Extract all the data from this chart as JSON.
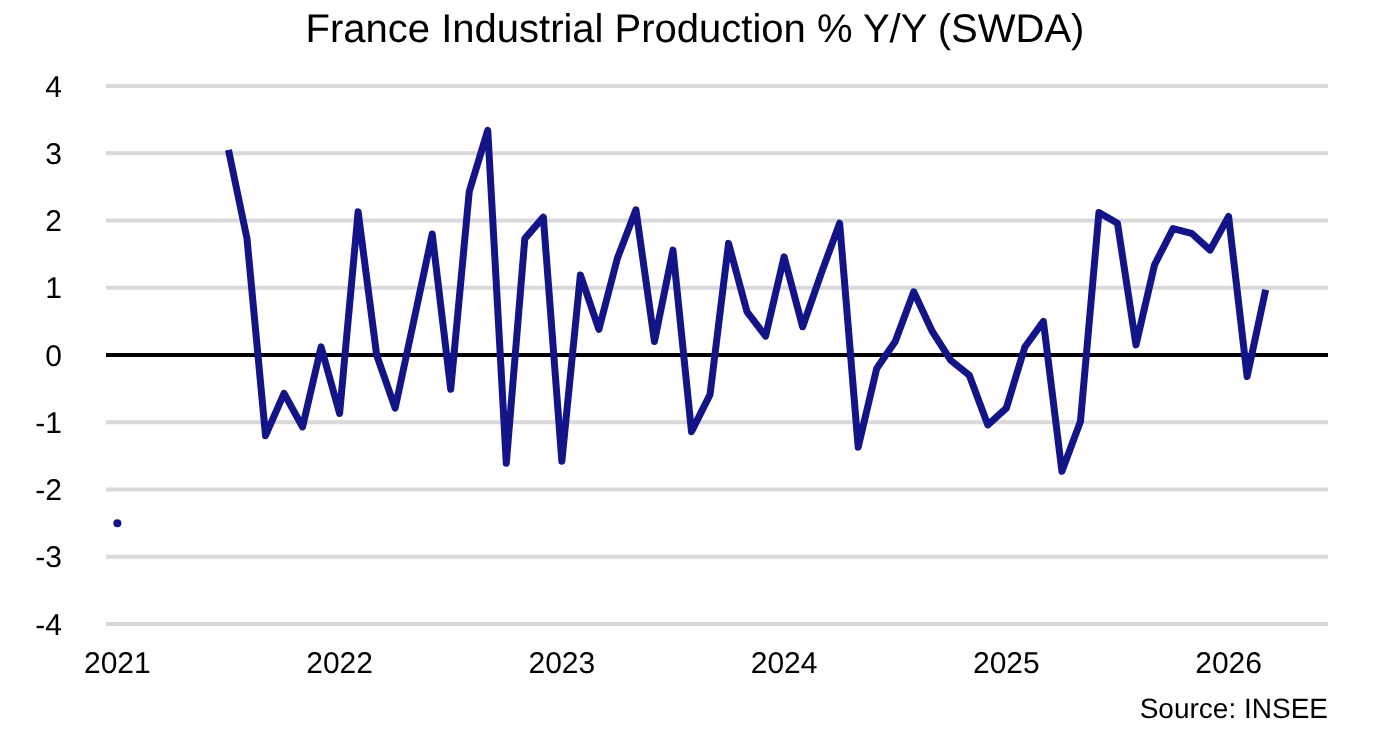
{
  "chart_data": {
    "type": "line",
    "title": "France Industrial Production % Y/Y (SWDA)",
    "x": [
      "2021-01",
      "2021-02",
      "2021-03",
      "2021-04",
      "2021-05",
      "2021-06",
      "2021-07",
      "2021-08",
      "2021-09",
      "2021-10",
      "2021-11",
      "2021-12",
      "2022-01",
      "2022-02",
      "2022-03",
      "2022-04",
      "2022-05",
      "2022-06",
      "2022-07",
      "2022-08",
      "2022-09",
      "2022-10",
      "2022-11",
      "2022-12",
      "2023-01",
      "2023-02",
      "2023-03",
      "2023-04",
      "2023-05",
      "2023-06",
      "2023-07",
      "2023-08",
      "2023-09",
      "2023-10",
      "2023-11",
      "2023-12",
      "2024-01",
      "2024-02",
      "2024-03",
      "2024-04",
      "2024-05",
      "2024-06",
      "2024-07",
      "2024-08",
      "2024-09",
      "2024-10",
      "2024-11",
      "2024-12",
      "2025-01",
      "2025-02",
      "2025-03",
      "2025-04",
      "2025-05",
      "2025-06",
      "2025-07",
      "2025-08",
      "2025-09",
      "2025-10",
      "2025-11",
      "2025-12",
      "2026-01",
      "2026-02",
      "2026-03"
    ],
    "series": [
      {
        "color": "#141489",
        "values": [
          -2.5,
          null,
          null,
          null,
          null,
          null,
          3.05,
          1.73,
          -1.2,
          -0.57,
          -1.07,
          0.12,
          -0.87,
          2.13,
          0,
          -0.79,
          0.5,
          1.8,
          -0.51,
          2.43,
          3.34,
          -1.61,
          1.73,
          2.05,
          -1.58,
          1.19,
          0.38,
          1.44,
          2.16,
          0.2,
          1.56,
          -1.14,
          -0.59,
          1.66,
          0.64,
          0.28,
          1.46,
          0.42,
          1.21,
          1.96,
          -1.37,
          -0.2,
          0.2,
          0.94,
          0.35,
          -0.08,
          -0.3,
          -1.04,
          -0.79,
          0.12,
          0.5,
          -1.73,
          -0.99,
          2.12,
          1.96,
          0.15,
          1.34,
          1.88,
          1.81,
          1.56,
          2.06,
          -0.32,
          0.97
        ]
      }
    ],
    "xlim": [
      "2020-12-13",
      "2026-06-12"
    ],
    "xticks": [
      "2021",
      "2022",
      "2023",
      "2024",
      "2025",
      "2026"
    ],
    "ylim": [
      -4,
      4
    ],
    "yticks": [
      -4,
      -3,
      -2,
      -1,
      0,
      1,
      2,
      3,
      4
    ],
    "grid": "y",
    "legend": false,
    "marker": "none",
    "line_style": "solid",
    "ref_lines": [
      {
        "axis": "y",
        "value": 0,
        "color": "#000000"
      }
    ],
    "annotations": [
      "Source: INSEE"
    ]
  }
}
